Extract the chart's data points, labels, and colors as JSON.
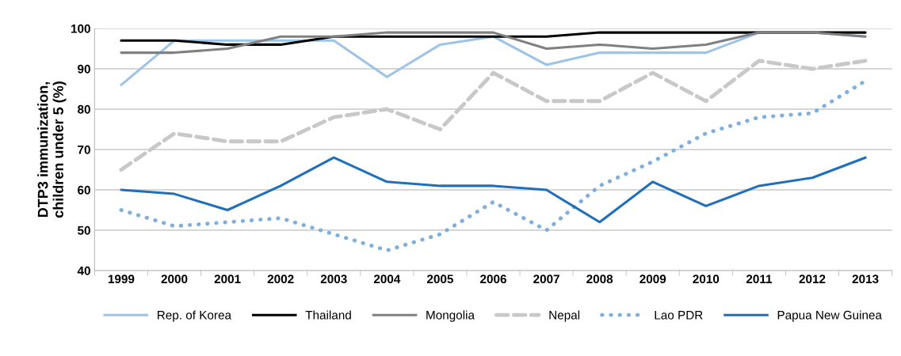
{
  "chart_data": {
    "type": "line",
    "ylabel": "DTP3 immunization,\nchildren under 5 (%)",
    "categories": [
      "1999",
      "2000",
      "2001",
      "2002",
      "2003",
      "2004",
      "2005",
      "2006",
      "2007",
      "2008",
      "2009",
      "2010",
      "2011",
      "2012",
      "2013"
    ],
    "ylim": [
      40,
      100
    ],
    "yticks": [
      40,
      50,
      60,
      70,
      80,
      90,
      100
    ],
    "grid": "y",
    "legend": "bottom",
    "marker": "none",
    "series": [
      {
        "name": "Rep. of Korea",
        "color": "#9dc3e6",
        "line_style": "solid",
        "values": [
          86,
          97,
          97,
          97,
          97,
          88,
          96,
          98,
          91,
          94,
          94,
          94,
          99,
          99,
          98
        ]
      },
      {
        "name": "Thailand",
        "color": "#000000",
        "line_style": "solid",
        "values": [
          97,
          97,
          96,
          96,
          98,
          98,
          98,
          98,
          98,
          99,
          99,
          99,
          99,
          99,
          99
        ]
      },
      {
        "name": "Mongolia",
        "color": "#808080",
        "line_style": "solid",
        "values": [
          94,
          94,
          95,
          98,
          98,
          99,
          99,
          99,
          95,
          96,
          95,
          96,
          99,
          99,
          98
        ]
      },
      {
        "name": "Nepal",
        "color": "#c8c8c8",
        "line_style": "dashed",
        "values": [
          65,
          74,
          72,
          72,
          78,
          80,
          75,
          89,
          82,
          82,
          89,
          82,
          92,
          90,
          92
        ]
      },
      {
        "name": "Lao PDR",
        "color": "#7fafdc",
        "line_style": "dotted",
        "values": [
          55,
          51,
          52,
          53,
          49,
          45,
          49,
          57,
          50,
          61,
          67,
          74,
          78,
          79,
          87
        ]
      },
      {
        "name": "Papua New Guinea",
        "color": "#1f6fba",
        "line_style": "solid",
        "values": [
          60,
          59,
          55,
          61,
          68,
          62,
          61,
          61,
          60,
          52,
          62,
          56,
          61,
          63,
          68
        ]
      }
    ]
  }
}
